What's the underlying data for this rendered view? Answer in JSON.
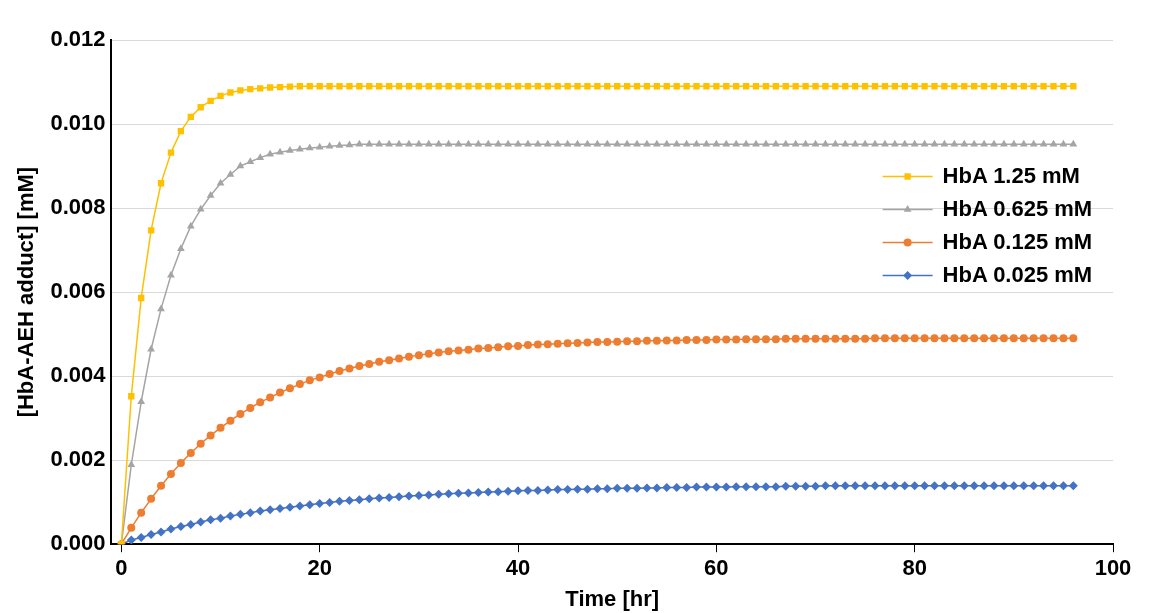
{
  "chart_data": {
    "type": "line",
    "xlabel": "Time [hr]",
    "ylabel": "[HbA-AEH adduct] [mM]",
    "x": [
      0,
      1,
      2,
      3,
      4,
      5,
      6,
      7,
      8,
      9,
      10,
      11,
      12,
      13,
      14,
      15,
      16,
      17,
      18,
      19,
      20,
      21,
      22,
      23,
      24,
      25,
      26,
      27,
      28,
      29,
      30,
      31,
      32,
      33,
      34,
      35,
      36,
      37,
      38,
      39,
      40,
      41,
      42,
      43,
      44,
      45,
      46,
      47,
      48,
      49,
      50,
      51,
      52,
      53,
      54,
      55,
      56,
      57,
      58,
      59,
      60,
      61,
      62,
      63,
      64,
      65,
      66,
      67,
      68,
      69,
      70,
      71,
      72,
      73,
      74,
      75,
      76,
      77,
      78,
      79,
      80,
      81,
      82,
      83,
      84,
      85,
      86,
      87,
      88,
      89,
      90,
      91,
      92,
      93,
      94,
      95,
      96
    ],
    "xlim": [
      -1,
      100
    ],
    "xticks": [
      0,
      20,
      40,
      60,
      80,
      100
    ],
    "ylim": [
      0,
      0.012
    ],
    "yticks": [
      {
        "value": 0,
        "label": "0.000"
      },
      {
        "value": 0.002,
        "label": "0.002"
      },
      {
        "value": 0.004,
        "label": "0.004"
      },
      {
        "value": 0.006,
        "label": "0.006"
      },
      {
        "value": 0.008,
        "label": "0.008"
      },
      {
        "value": 0.01,
        "label": "0.010"
      },
      {
        "value": 0.012,
        "label": "0.012"
      }
    ],
    "grid": "y",
    "legend": "top right",
    "line_style": "solid",
    "series": [
      {
        "name": "HbA 1.25 mM",
        "color": "#ffc000",
        "marker": "square",
        "values": [
          0,
          0.00352,
          0.00586,
          0.00747,
          0.00859,
          0.00932,
          0.00983,
          0.01017,
          0.0104,
          0.01055,
          0.01067,
          0.01075,
          0.0108,
          0.01083,
          0.01085,
          0.01087,
          0.01088,
          0.01089,
          0.0109,
          0.0109,
          0.0109,
          0.0109,
          0.0109,
          0.0109,
          0.0109,
          0.0109,
          0.0109,
          0.0109,
          0.0109,
          0.0109,
          0.0109,
          0.0109,
          0.0109,
          0.0109,
          0.0109,
          0.0109,
          0.0109,
          0.0109,
          0.0109,
          0.0109,
          0.0109,
          0.0109,
          0.0109,
          0.0109,
          0.0109,
          0.0109,
          0.0109,
          0.0109,
          0.0109,
          0.0109,
          0.0109,
          0.0109,
          0.0109,
          0.0109,
          0.0109,
          0.0109,
          0.0109,
          0.0109,
          0.0109,
          0.0109,
          0.0109,
          0.0109,
          0.0109,
          0.0109,
          0.0109,
          0.0109,
          0.0109,
          0.0109,
          0.0109,
          0.0109,
          0.0109,
          0.0109,
          0.0109,
          0.0109,
          0.0109,
          0.0109,
          0.0109,
          0.0109,
          0.0109,
          0.0109,
          0.0109,
          0.0109,
          0.0109,
          0.0109,
          0.0109,
          0.0109,
          0.0109,
          0.0109,
          0.0109,
          0.0109,
          0.0109,
          0.0109,
          0.0109,
          0.0109,
          0.0109,
          0.0109,
          0.0109
        ]
      },
      {
        "name": "HbA 0.625 mM",
        "color": "#a5a5a5",
        "marker": "triangle",
        "values": [
          0,
          0.00189,
          0.00339,
          0.00464,
          0.0056,
          0.0064,
          0.00703,
          0.00757,
          0.00797,
          0.0083,
          0.00859,
          0.0088,
          0.009,
          0.0091,
          0.0092,
          0.00928,
          0.00933,
          0.00937,
          0.0094,
          0.00943,
          0.00945,
          0.00947,
          0.00949,
          0.0095,
          0.00952,
          0.00952,
          0.00952,
          0.00952,
          0.00952,
          0.00952,
          0.00952,
          0.00952,
          0.00952,
          0.00952,
          0.00952,
          0.00952,
          0.00952,
          0.00952,
          0.00952,
          0.00952,
          0.00952,
          0.00952,
          0.00952,
          0.00952,
          0.00952,
          0.00952,
          0.00952,
          0.00952,
          0.00952,
          0.00952,
          0.00952,
          0.00952,
          0.00952,
          0.00952,
          0.00952,
          0.00952,
          0.00952,
          0.00952,
          0.00952,
          0.00952,
          0.00952,
          0.00952,
          0.00952,
          0.00952,
          0.00952,
          0.00952,
          0.00952,
          0.00952,
          0.00952,
          0.00952,
          0.00952,
          0.00952,
          0.00952,
          0.00952,
          0.00952,
          0.00952,
          0.00952,
          0.00952,
          0.00952,
          0.00952,
          0.00952,
          0.00952,
          0.00952,
          0.00952,
          0.00952,
          0.00952,
          0.00952,
          0.00952,
          0.00952,
          0.00952,
          0.00952,
          0.00952,
          0.00952,
          0.00952,
          0.00952,
          0.00952,
          0.00952
        ]
      },
      {
        "name": "HbA 0.125 mM",
        "color": "#ed7d31",
        "marker": "circle",
        "values": [
          0,
          0.00039,
          0.00075,
          0.00108,
          0.00139,
          0.00167,
          0.00193,
          0.00217,
          0.00239,
          0.00259,
          0.00277,
          0.00294,
          0.0031,
          0.00324,
          0.00338,
          0.00349,
          0.00361,
          0.00371,
          0.00381,
          0.0039,
          0.00397,
          0.00405,
          0.00412,
          0.00418,
          0.00424,
          0.00429,
          0.00434,
          0.00438,
          0.00442,
          0.00446,
          0.0045,
          0.00453,
          0.00456,
          0.00459,
          0.00461,
          0.00463,
          0.00466,
          0.00467,
          0.00469,
          0.00471,
          0.00472,
          0.00474,
          0.00475,
          0.00476,
          0.00477,
          0.00478,
          0.00479,
          0.0048,
          0.00481,
          0.00481,
          0.00482,
          0.00483,
          0.00483,
          0.00484,
          0.00484,
          0.00485,
          0.00485,
          0.00486,
          0.00486,
          0.00486,
          0.00487,
          0.00487,
          0.00487,
          0.00488,
          0.00488,
          0.00488,
          0.00488,
          0.00489,
          0.00489,
          0.00489,
          0.00489,
          0.00489,
          0.00489,
          0.00489,
          0.00489,
          0.00489,
          0.0049,
          0.0049,
          0.0049,
          0.0049,
          0.0049,
          0.0049,
          0.0049,
          0.0049,
          0.0049,
          0.0049,
          0.0049,
          0.0049,
          0.0049,
          0.0049,
          0.0049,
          0.0049,
          0.0049,
          0.0049,
          0.0049,
          0.0049,
          0.0049
        ]
      },
      {
        "name": "HbA 0.025 mM",
        "color": "#4472c4",
        "marker": "diamond",
        "values": [
          0,
          0.0001,
          0.00016,
          0.00023,
          0.00029,
          0.00036,
          0.00042,
          0.00047,
          0.00053,
          0.00058,
          0.00062,
          0.00067,
          0.00071,
          0.00075,
          0.00079,
          0.00082,
          0.00085,
          0.00088,
          0.00091,
          0.00094,
          0.00097,
          0.00099,
          0.00102,
          0.00104,
          0.00106,
          0.00108,
          0.0011,
          0.00111,
          0.00113,
          0.00115,
          0.00116,
          0.00117,
          0.00119,
          0.0012,
          0.00121,
          0.00122,
          0.00123,
          0.00124,
          0.00125,
          0.00126,
          0.00127,
          0.00128,
          0.00128,
          0.00129,
          0.0013,
          0.0013,
          0.00131,
          0.00131,
          0.00132,
          0.00132,
          0.00133,
          0.00133,
          0.00133,
          0.00134,
          0.00134,
          0.00135,
          0.00135,
          0.00135,
          0.00136,
          0.00136,
          0.00136,
          0.00136,
          0.00137,
          0.00137,
          0.00137,
          0.00137,
          0.00137,
          0.00138,
          0.00138,
          0.00138,
          0.00138,
          0.00139,
          0.00139,
          0.00139,
          0.00139,
          0.00139,
          0.00139,
          0.00139,
          0.00139,
          0.00139,
          0.00139,
          0.00139,
          0.00139,
          0.00139,
          0.00139,
          0.00139,
          0.00139,
          0.00139,
          0.00139,
          0.00139,
          0.00139,
          0.00139,
          0.00139,
          0.00139,
          0.00139,
          0.00139,
          0.00139
        ]
      }
    ]
  }
}
